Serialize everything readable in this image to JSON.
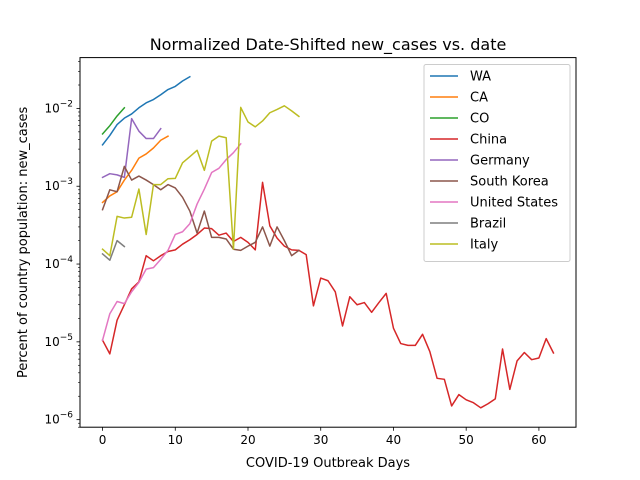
{
  "chart_data": {
    "type": "line",
    "title": "Normalized Date-Shifted new_cases vs. date",
    "xlabel": "COVID-19 Outbreak Days",
    "ylabel": "Percent of country population: new_cases",
    "xlim": [
      -3.1,
      65.1
    ],
    "ylim": [
      8e-07,
      0.045
    ],
    "y_scale": "log",
    "x_ticks": [
      0,
      10,
      20,
      30,
      40,
      50,
      60
    ],
    "y_ticks": [
      {
        "value": 1e-06,
        "base": "10",
        "exp": "−6"
      },
      {
        "value": 1e-05,
        "base": "10",
        "exp": "−5"
      },
      {
        "value": 0.0001,
        "base": "10",
        "exp": "−4"
      },
      {
        "value": 0.001,
        "base": "10",
        "exp": "−3"
      },
      {
        "value": 0.01,
        "base": "10",
        "exp": "−2"
      }
    ],
    "grid": false,
    "legend_position": "top-right",
    "series": [
      {
        "name": "WA",
        "color": "#1f77b4",
        "x": [
          0,
          1,
          2,
          3,
          4,
          5,
          6,
          7,
          8,
          9,
          10,
          11,
          12
        ],
        "y": [
          0.0034,
          0.0045,
          0.0062,
          0.0075,
          0.0085,
          0.0102,
          0.0118,
          0.013,
          0.015,
          0.0175,
          0.0192,
          0.0225,
          0.0255
        ]
      },
      {
        "name": "CA",
        "color": "#ff7f0e",
        "x": [
          0,
          1,
          2,
          3,
          4,
          5,
          6,
          7,
          8,
          9
        ],
        "y": [
          0.00062,
          0.00075,
          0.00085,
          0.0012,
          0.0016,
          0.0023,
          0.0026,
          0.0031,
          0.0039,
          0.0044
        ]
      },
      {
        "name": "CO",
        "color": "#2ca02c",
        "x": [
          0,
          1,
          2,
          3
        ],
        "y": [
          0.0047,
          0.006,
          0.008,
          0.0102
        ]
      },
      {
        "name": "China",
        "color": "#d62728",
        "x": [
          0,
          1,
          2,
          3,
          4,
          5,
          6,
          7,
          8,
          9,
          10,
          11,
          12,
          13,
          14,
          15,
          16,
          17,
          18,
          19,
          20,
          21,
          22,
          23,
          24,
          25,
          26,
          27,
          28,
          29,
          30,
          31,
          32,
          33,
          34,
          35,
          36,
          37,
          38,
          39,
          40,
          41,
          42,
          43,
          44,
          45,
          46,
          47,
          48,
          49,
          50,
          51,
          52,
          53,
          54,
          55,
          56,
          57,
          58,
          59,
          60,
          61,
          62
        ],
        "y": [
          1.05e-05,
          7e-06,
          1.9e-05,
          3e-05,
          4.8e-05,
          5.9e-05,
          0.000128,
          0.00011,
          0.000128,
          0.000145,
          0.000152,
          0.00018,
          0.000205,
          0.00024,
          0.00029,
          0.000285,
          0.000235,
          0.00025,
          0.000195,
          0.00022,
          0.00019,
          0.000152,
          0.00112,
          0.00031,
          0.000215,
          0.00017,
          0.000152,
          0.00015,
          0.000132,
          2.9e-05,
          6.6e-05,
          6.1e-05,
          4.4e-05,
          1.6e-05,
          3.8e-05,
          3e-05,
          3.2e-05,
          2.4e-05,
          3.2e-05,
          4.2e-05,
          1.5e-05,
          9.5e-06,
          9e-06,
          9e-06,
          1.25e-05,
          7.5e-06,
          3.4e-06,
          3.3e-06,
          1.5e-06,
          2.1e-06,
          1.8e-06,
          1.65e-06,
          1.42e-06,
          1.6e-06,
          1.85e-06,
          8.1e-06,
          2.45e-06,
          5.7e-06,
          7.3e-06,
          5.9e-06,
          6.2e-06,
          1.1e-05,
          7.2e-06
        ]
      },
      {
        "name": "Germany",
        "color": "#9467bd",
        "x": [
          0,
          1,
          2,
          3,
          4,
          5,
          6,
          7,
          8
        ],
        "y": [
          0.0013,
          0.00145,
          0.0014,
          0.0013,
          0.0074,
          0.0051,
          0.0041,
          0.0041,
          0.0055
        ]
      },
      {
        "name": "South Korea",
        "color": "#8c564b",
        "x": [
          0,
          1,
          2,
          3,
          4,
          5,
          6,
          7,
          8,
          9,
          10,
          11,
          12,
          13,
          14,
          15,
          16,
          17,
          18,
          19,
          20,
          21,
          22,
          23,
          24,
          25,
          26,
          27
        ],
        "y": [
          0.0005,
          0.0009,
          0.00085,
          0.0018,
          0.0012,
          0.00135,
          0.0012,
          0.00105,
          0.0009,
          0.00105,
          0.00095,
          0.00072,
          0.00048,
          0.00025,
          0.00048,
          0.00022,
          0.00022,
          0.00021,
          0.000155,
          0.00015,
          0.00017,
          0.00019,
          0.0003,
          0.00017,
          0.0003,
          0.0002,
          0.000128,
          0.00015
        ]
      },
      {
        "name": "United States",
        "color": "#e377c2",
        "x": [
          0,
          1,
          2,
          3,
          4,
          5,
          6,
          7,
          8,
          9,
          10,
          11,
          12,
          13,
          14,
          15,
          16,
          17,
          18,
          19
        ],
        "y": [
          1.05e-05,
          2.3e-05,
          3.3e-05,
          3.1e-05,
          4.4e-05,
          5.8e-05,
          8.6e-05,
          9e-05,
          0.000115,
          0.00015,
          0.00024,
          0.00026,
          0.00033,
          0.00059,
          0.00092,
          0.0015,
          0.0017,
          0.0022,
          0.0027,
          0.0035
        ]
      },
      {
        "name": "Brazil",
        "color": "#7f7f7f",
        "x": [
          0,
          1,
          2,
          3
        ],
        "y": [
          0.000135,
          0.000112,
          0.0002,
          0.000168
        ]
      },
      {
        "name": "Italy",
        "color": "#bcbd22",
        "x": [
          0,
          1,
          2,
          3,
          4,
          5,
          6,
          7,
          8,
          9,
          10,
          11,
          12,
          13,
          14,
          15,
          16,
          17,
          18,
          19,
          20,
          21,
          22,
          23,
          24,
          25,
          26,
          27
        ],
        "y": [
          0.000155,
          0.000128,
          0.00041,
          0.00039,
          0.0004,
          0.00092,
          0.00024,
          0.00105,
          0.00105,
          0.00125,
          0.00126,
          0.002,
          0.0024,
          0.0029,
          0.0016,
          0.0038,
          0.0044,
          0.0042,
          0.000155,
          0.0103,
          0.0067,
          0.0058,
          0.0069,
          0.0088,
          0.0097,
          0.0108,
          0.0093,
          0.0079
        ]
      }
    ]
  }
}
